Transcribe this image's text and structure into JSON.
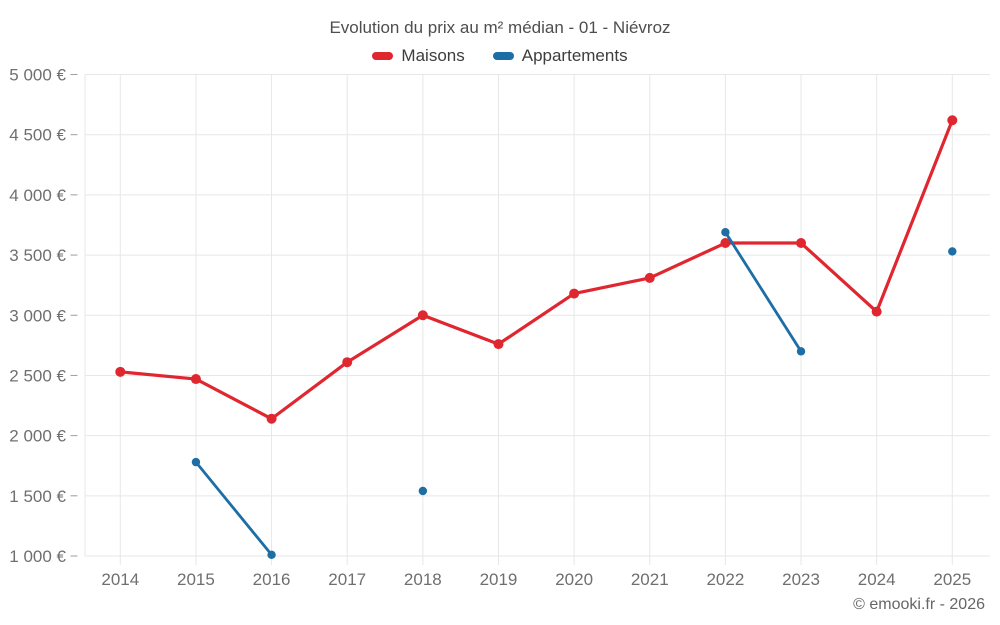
{
  "title": "Evolution du prix au m² médian - 01 - Niévroz",
  "legend": {
    "items": [
      {
        "label": "Maisons",
        "color": "#e0262f"
      },
      {
        "label": "Appartements",
        "color": "#1c6ea4"
      }
    ]
  },
  "copyright": "© emooki.fr - 2026",
  "colors": {
    "maisons": "#e0262f",
    "appartements": "#1c6ea4",
    "gridline": "#e7e7e7",
    "tick": "#9e9e9e",
    "axis_label": "#6f6f6f"
  },
  "chart_data": {
    "type": "line",
    "title": "Evolution du prix au m² médian - 01 - Niévroz",
    "categories": [
      "2014",
      "2015",
      "2016",
      "2017",
      "2018",
      "2019",
      "2020",
      "2021",
      "2022",
      "2023",
      "2024",
      "2025"
    ],
    "series": [
      {
        "name": "Maisons",
        "color": "#e0262f",
        "values": [
          2530,
          2470,
          2140,
          2610,
          3000,
          2760,
          3180,
          3310,
          3600,
          3600,
          3030,
          4620
        ]
      },
      {
        "name": "Appartements",
        "color": "#1c6ea4",
        "values": [
          null,
          1780,
          1010,
          null,
          1540,
          null,
          null,
          null,
          3690,
          2700,
          null,
          3530
        ]
      }
    ],
    "xlabel": "",
    "ylabel": "",
    "ylim": [
      1000,
      5000
    ],
    "y_tick_step": 500,
    "y_tick_values": [
      1000,
      1500,
      2000,
      2500,
      3000,
      3500,
      4000,
      4500,
      5000
    ],
    "y_tick_labels": [
      "1 000 €",
      "1 500 €",
      "2 000 €",
      "2 500 €",
      "3 000 €",
      "3 500 €",
      "4 000 €",
      "4 500 €",
      "5 000 €"
    ],
    "grid": true,
    "legend_position": "top",
    "unit": "€"
  }
}
